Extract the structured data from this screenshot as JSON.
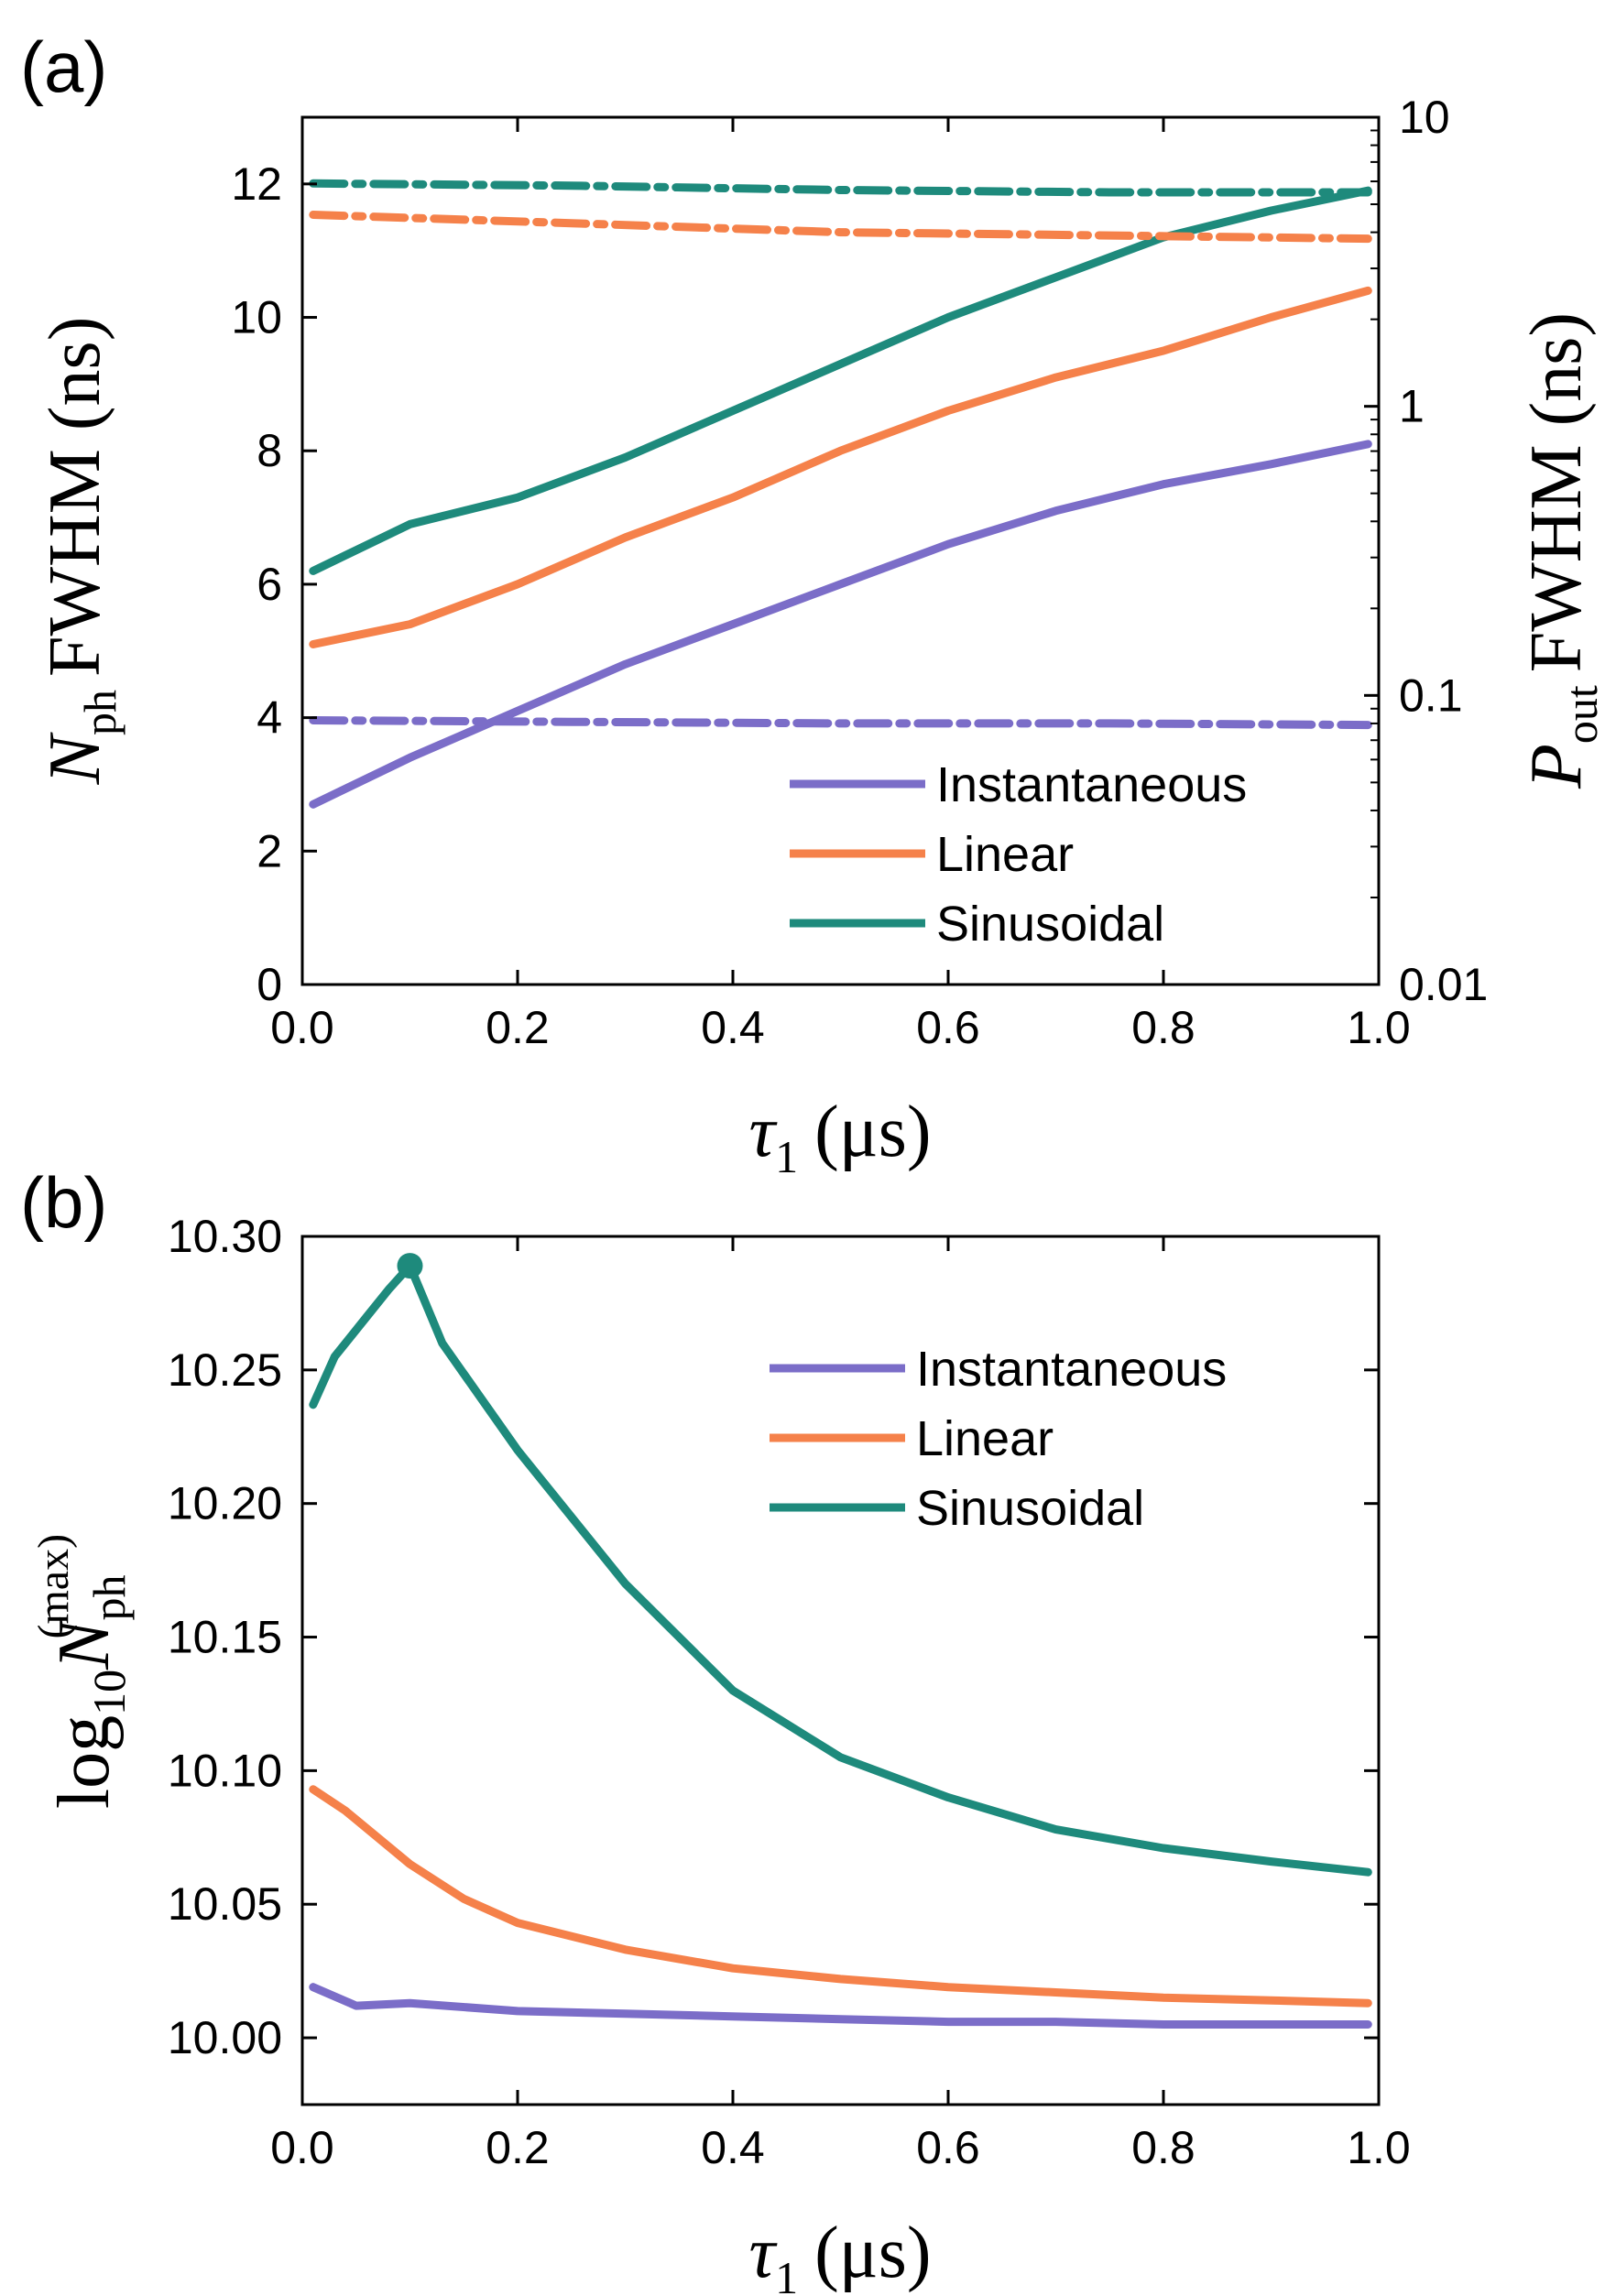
{
  "colors": {
    "instantaneous": "#7B6DC8",
    "linear": "#F5814A",
    "sinusoidal": "#1E8A7C"
  },
  "chart_data": [
    {
      "panel_label": "(a)",
      "type": "line",
      "xlabel": "τ₁ (μs)",
      "xlabel_symbol": "τ",
      "xlabel_sub": "1",
      "xlabel_unit": "(μs)",
      "ylabel_left": "N_ph FWHM (ns)",
      "ylabel_left_symbol": "N",
      "ylabel_left_sub": "ph",
      "ylabel_left_rest": "FWHM (ns)",
      "ylabel_right": "P_out FWHM (ns)",
      "ylabel_right_symbol": "P",
      "ylabel_right_sub": "out",
      "ylabel_right_rest": "FWHM (ns)",
      "xlim": [
        0.0,
        1.0
      ],
      "ylim_left": [
        0,
        13
      ],
      "ylim_right": [
        0.01,
        10
      ],
      "right_scale": "log",
      "x_ticks": [
        "0.0",
        "0.2",
        "0.4",
        "0.6",
        "0.8",
        "1.0"
      ],
      "y_ticks_left": [
        "0",
        "2",
        "4",
        "6",
        "8",
        "10",
        "12"
      ],
      "y_ticks_right": [
        "0.01",
        "0.1",
        "1",
        "10"
      ],
      "legend": [
        "Instantaneous",
        "Linear",
        "Sinusoidal"
      ],
      "legend_position": "bottom-right",
      "series": [
        {
          "name": "Instantaneous",
          "axis": "left",
          "style": "solid",
          "x": [
            0.01,
            0.1,
            0.2,
            0.3,
            0.4,
            0.5,
            0.6,
            0.7,
            0.8,
            0.9,
            0.99
          ],
          "values": [
            2.7,
            3.4,
            4.1,
            4.8,
            5.4,
            6.0,
            6.6,
            7.1,
            7.5,
            7.8,
            8.1
          ]
        },
        {
          "name": "Linear",
          "axis": "left",
          "style": "solid",
          "x": [
            0.01,
            0.1,
            0.2,
            0.3,
            0.4,
            0.5,
            0.6,
            0.7,
            0.8,
            0.9,
            0.99
          ],
          "values": [
            5.1,
            5.4,
            6.0,
            6.7,
            7.3,
            8.0,
            8.6,
            9.1,
            9.5,
            10.0,
            10.4
          ]
        },
        {
          "name": "Sinusoidal",
          "axis": "left",
          "style": "solid",
          "x": [
            0.01,
            0.1,
            0.2,
            0.3,
            0.4,
            0.5,
            0.6,
            0.7,
            0.8,
            0.9,
            0.99
          ],
          "values": [
            6.2,
            6.9,
            7.3,
            7.9,
            8.6,
            9.3,
            10.0,
            10.6,
            11.2,
            11.6,
            11.9
          ]
        },
        {
          "name": "Instantaneous P_out",
          "axis": "right",
          "style": "dashdot",
          "x": [
            0.01,
            0.25,
            0.5,
            0.75,
            0.99
          ],
          "values": [
            0.082,
            0.081,
            0.08,
            0.08,
            0.079
          ]
        },
        {
          "name": "Linear P_out",
          "axis": "right",
          "style": "dashdot",
          "x": [
            0.01,
            0.25,
            0.5,
            0.75,
            0.99
          ],
          "values": [
            4.6,
            4.3,
            4.0,
            3.9,
            3.8
          ]
        },
        {
          "name": "Sinusoidal P_out",
          "axis": "right",
          "style": "dashdot",
          "x": [
            0.01,
            0.25,
            0.5,
            0.75,
            0.99
          ],
          "values": [
            5.9,
            5.8,
            5.6,
            5.5,
            5.5
          ]
        }
      ]
    },
    {
      "panel_label": "(b)",
      "type": "line",
      "xlabel": "τ₁ (μs)",
      "xlabel_symbol": "τ",
      "xlabel_sub": "1",
      "xlabel_unit": "(μs)",
      "ylabel": "log10 N_ph^(max)",
      "ylabel_log": "log",
      "ylabel_log_sub": "10",
      "ylabel_symbol": "N",
      "ylabel_sub": "ph",
      "ylabel_sup": "(max)",
      "xlim": [
        0.0,
        1.0
      ],
      "ylim": [
        9.975,
        10.3
      ],
      "x_ticks": [
        "0.0",
        "0.2",
        "0.4",
        "0.6",
        "0.8",
        "1.0"
      ],
      "y_ticks": [
        "10.00",
        "10.05",
        "10.10",
        "10.15",
        "10.20",
        "10.25",
        "10.30"
      ],
      "legend": [
        "Instantaneous",
        "Linear",
        "Sinusoidal"
      ],
      "legend_position": "top-right",
      "marker": {
        "series": "Sinusoidal",
        "x": 0.1,
        "y": 10.289
      },
      "series": [
        {
          "name": "Instantaneous",
          "x": [
            0.01,
            0.05,
            0.1,
            0.2,
            0.3,
            0.4,
            0.5,
            0.6,
            0.7,
            0.8,
            0.9,
            0.99
          ],
          "values": [
            10.019,
            10.012,
            10.013,
            10.01,
            10.009,
            10.008,
            10.007,
            10.006,
            10.006,
            10.005,
            10.005,
            10.005
          ]
        },
        {
          "name": "Linear",
          "x": [
            0.01,
            0.04,
            0.1,
            0.15,
            0.2,
            0.3,
            0.4,
            0.5,
            0.6,
            0.7,
            0.8,
            0.9,
            0.99
          ],
          "values": [
            10.093,
            10.085,
            10.065,
            10.052,
            10.043,
            10.033,
            10.026,
            10.022,
            10.019,
            10.017,
            10.015,
            10.014,
            10.013
          ]
        },
        {
          "name": "Sinusoidal",
          "x": [
            0.01,
            0.03,
            0.06,
            0.08,
            0.1,
            0.13,
            0.2,
            0.3,
            0.4,
            0.5,
            0.6,
            0.7,
            0.8,
            0.9,
            0.99
          ],
          "values": [
            10.237,
            10.255,
            10.27,
            10.28,
            10.289,
            10.26,
            10.22,
            10.17,
            10.13,
            10.105,
            10.09,
            10.078,
            10.071,
            10.066,
            10.062
          ]
        }
      ]
    }
  ]
}
